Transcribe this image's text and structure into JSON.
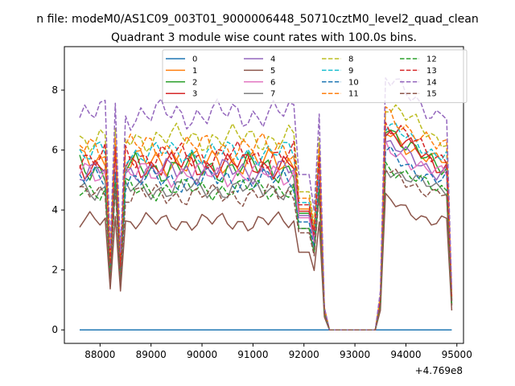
{
  "chart_data": {
    "type": "line",
    "suptitle": "n file: modeM0/AS1C09_003T01_9000006448_50710cztM0_level2_quad_clean",
    "title": "Quadrant 3 module wise count rates with 100.0s bins.",
    "xlabel": "",
    "ylabel": "",
    "x_offset_label": "+4.769e8",
    "xlim": [
      87300,
      95130
    ],
    "ylim": [
      -0.45,
      9.45
    ],
    "x_ticks": [
      88000,
      89000,
      90000,
      91000,
      92000,
      93000,
      94000,
      95000
    ],
    "x_tick_labels": [
      "88000",
      "89000",
      "90000",
      "91000",
      "92000",
      "93000",
      "94000",
      "95000"
    ],
    "y_ticks": [
      0,
      2,
      4,
      6,
      8
    ],
    "y_tick_labels": [
      "0",
      "2",
      "4",
      "6",
      "8"
    ],
    "grid": false,
    "legend": {
      "position": "top-center",
      "columns": 4
    },
    "series": [
      {
        "name": "0",
        "color": "#1f77b4",
        "dash": "solid",
        "base": 0.0,
        "peak": 0.0,
        "amp": 0.0
      },
      {
        "name": "1",
        "color": "#ff7f0e",
        "dash": "solid",
        "base": 5.6,
        "peak": 6.7,
        "amp": 0.5
      },
      {
        "name": "2",
        "color": "#2ca02c",
        "dash": "solid",
        "base": 5.4,
        "peak": 7.0,
        "amp": 0.55
      },
      {
        "name": "3",
        "color": "#d62728",
        "dash": "solid",
        "base": 5.5,
        "peak": 6.8,
        "amp": 0.5
      },
      {
        "name": "4",
        "color": "#9467bd",
        "dash": "solid",
        "base": 5.3,
        "peak": 6.3,
        "amp": 0.45
      },
      {
        "name": "5",
        "color": "#8c564b",
        "dash": "solid",
        "base": 3.6,
        "peak": 4.4,
        "amp": 0.35
      },
      {
        "name": "6",
        "color": "#e377c2",
        "dash": "solid",
        "base": 5.2,
        "peak": 6.2,
        "amp": 0.45
      },
      {
        "name": "7",
        "color": "#7f7f7f",
        "dash": "solid",
        "base": 4.7,
        "peak": 5.5,
        "amp": 0.4
      },
      {
        "name": "8",
        "color": "#bcbd22",
        "dash": "dashed",
        "base": 6.4,
        "peak": 7.7,
        "amp": 0.5
      },
      {
        "name": "9",
        "color": "#17becf",
        "dash": "dashed",
        "base": 5.9,
        "peak": 6.9,
        "amp": 0.45
      },
      {
        "name": "10",
        "color": "#1f77b4",
        "dash": "dashed",
        "base": 5.0,
        "peak": 6.0,
        "amp": 0.45
      },
      {
        "name": "11",
        "color": "#ff7f0e",
        "dash": "dashed",
        "base": 6.1,
        "peak": 7.4,
        "amp": 0.5
      },
      {
        "name": "12",
        "color": "#2ca02c",
        "dash": "dashed",
        "base": 4.7,
        "peak": 5.6,
        "amp": 0.4
      },
      {
        "name": "13",
        "color": "#d62728",
        "dash": "dashed",
        "base": 5.8,
        "peak": 7.0,
        "amp": 0.5
      },
      {
        "name": "14",
        "color": "#9467bd",
        "dash": "dashed",
        "base": 7.2,
        "peak": 8.5,
        "amp": 0.55
      },
      {
        "name": "15",
        "color": "#8c564b",
        "dash": "dashed",
        "base": 4.5,
        "peak": 5.4,
        "amp": 0.4
      }
    ],
    "time_segments": [
      {
        "x_start": 87600,
        "x_end": 92300,
        "x_step": 100
      },
      {
        "x_start": 92400,
        "x_end": 93400,
        "x_step": 100,
        "value": 0
      },
      {
        "x_start": 93500,
        "x_end": 94900,
        "x_step": 100
      }
    ]
  }
}
